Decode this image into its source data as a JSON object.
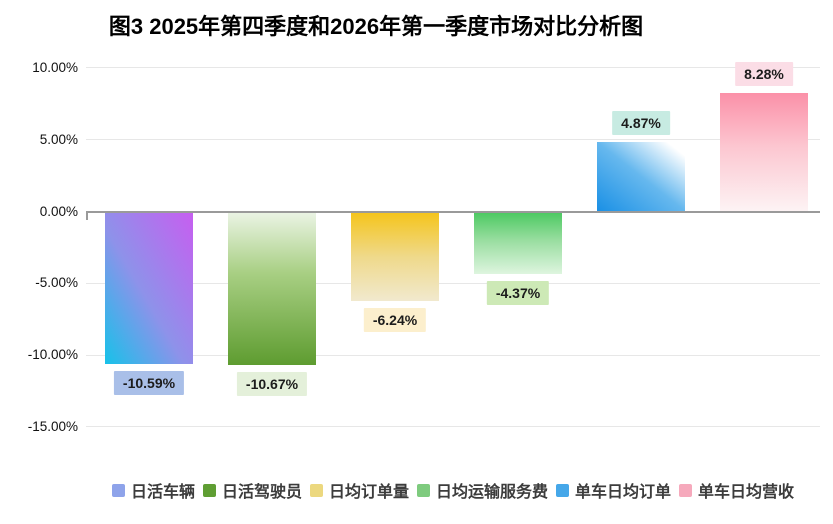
{
  "figure_title": "图3 2025年第四季度和2026年第一季度市场对比分析图",
  "y_axis": {
    "tick_labels": [
      "10.00%",
      "5.00%",
      "0.00%",
      "-5.00%",
      "-10.00%",
      "-15.00%"
    ],
    "tick_values": [
      10,
      5,
      0,
      -5,
      -10,
      -15
    ]
  },
  "chart_data": {
    "type": "bar",
    "title": "图3 2025年第四季度和2026年第一季度市场对比分析图",
    "categories": [
      "日活车辆",
      "日活驾驶员",
      "日均订单量",
      "日均运输服务费",
      "单车日均订单",
      "单车日均营收"
    ],
    "values": [
      -10.59,
      -10.67,
      -6.24,
      -4.37,
      4.87,
      8.28
    ],
    "data_labels": [
      "-10.59%",
      "-10.67%",
      "-6.24%",
      "-4.37%",
      "4.87%",
      "8.28%"
    ],
    "xlabel": "",
    "ylabel": "",
    "ylim": [
      -15,
      10
    ],
    "grid": true,
    "legend_position": "bottom",
    "series": [
      {
        "name": "日活车辆",
        "slug": "daily-active-vehicles",
        "value": -10.59,
        "label": "-10.59%",
        "legend_color": "#8ea3ea",
        "label_bg": "#a9bfe8",
        "bar_gradient": {
          "direction": "to bottom left",
          "stops": [
            "#c75ef0",
            "#8e92ea",
            "#16c2e9"
          ],
          "positions": [
            0,
            55,
            100
          ]
        }
      },
      {
        "name": "日活驾驶员",
        "slug": "daily-active-drivers",
        "value": -10.67,
        "label": "-10.67%",
        "legend_color": "#5f9e33",
        "label_bg": "#e4f0da",
        "bar_gradient": {
          "direction": "to bottom",
          "stops": [
            "#ebf4e5",
            "#a8cf83",
            "#5e9c30"
          ],
          "positions": [
            0,
            40,
            100
          ]
        }
      },
      {
        "name": "日均订单量",
        "slug": "daily-order-volume",
        "value": -6.24,
        "label": "-6.24%",
        "legend_color": "#ecd87f",
        "label_bg": "#fcefcd",
        "bar_gradient": {
          "direction": "to bottom",
          "stops": [
            "#f5c41a",
            "#efd98a",
            "#f1e9ce"
          ],
          "positions": [
            0,
            50,
            100
          ]
        }
      },
      {
        "name": "日均运输服务费",
        "slug": "daily-transport-service-fee",
        "value": -4.37,
        "label": "-4.37%",
        "legend_color": "#7ecb7e",
        "label_bg": "#cde9b6",
        "bar_gradient": {
          "direction": "to bottom",
          "stops": [
            "#4bc961",
            "#98dd9f",
            "#def5df"
          ],
          "positions": [
            0,
            45,
            100
          ]
        }
      },
      {
        "name": "单车日均订单",
        "slug": "per-vehicle-daily-orders",
        "value": 4.87,
        "label": "4.87%",
        "legend_color": "#45a7e9",
        "label_bg": "#c7ebe2",
        "bar_gradient": {
          "direction": "to top right",
          "stops": [
            "#1a90e5",
            "#66b8ee",
            "#ffffff"
          ],
          "positions": [
            0,
            50,
            90
          ]
        }
      },
      {
        "name": "单车日均营收",
        "slug": "per-vehicle-daily-revenue",
        "value": 8.28,
        "label": "8.28%",
        "legend_color": "#f6a9bc",
        "label_bg": "#fbdde6",
        "bar_gradient": {
          "direction": "to bottom",
          "stops": [
            "#fb90a8",
            "#fcc6d0",
            "#fdf3f4"
          ],
          "positions": [
            0,
            45,
            100
          ]
        }
      }
    ]
  },
  "colors": {
    "background": "#ffffff",
    "gridline": "#e7e7e7",
    "zero_line": "#9a9a9a",
    "title_text": "#000000",
    "axis_text": "#111111",
    "data_label_text": "#1c1c1c",
    "legend_text": "#3c3c3c"
  }
}
